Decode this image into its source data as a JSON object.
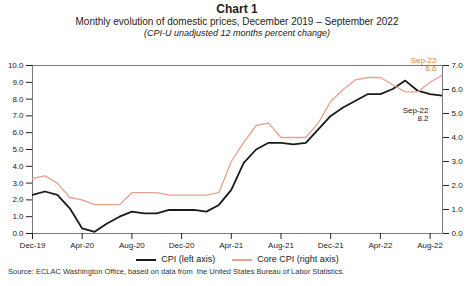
{
  "chart_data": {
    "type": "line",
    "title": "Chart 1",
    "subtitle": [
      "Monthly evolution of domestic prices, December 2019 – September 2022",
      "(CPI-U unadjusted 12 months percent change)"
    ],
    "source": "Source: ECLAC Washington Office, based on data from  the United States Bureau of Labor Statistics.",
    "x": [
      0,
      1,
      2,
      3,
      4,
      5,
      6,
      7,
      8,
      9,
      10,
      11,
      12,
      13,
      14,
      15,
      16,
      17,
      18,
      19,
      20,
      21,
      22,
      23,
      24,
      25,
      26,
      27,
      28,
      29,
      30,
      31,
      32,
      33
    ],
    "xlim": [
      0,
      33
    ],
    "xticks": [
      {
        "value": 0,
        "label": "Dec-19"
      },
      {
        "value": 4,
        "label": "Apr-20"
      },
      {
        "value": 8,
        "label": "Aug-20"
      },
      {
        "value": 12,
        "label": "Dec-20"
      },
      {
        "value": 16,
        "label": "Apr-21"
      },
      {
        "value": 20,
        "label": "Aug-21"
      },
      {
        "value": 24,
        "label": "Dec-21"
      },
      {
        "value": 28,
        "label": "Apr-22"
      },
      {
        "value": 32,
        "label": "Aug-22"
      }
    ],
    "ylim": [
      0.0,
      10.0
    ],
    "yticks": [
      {
        "value": 0,
        "label": "0.0"
      },
      {
        "value": 1,
        "label": "1.0"
      },
      {
        "value": 2,
        "label": "2.0"
      },
      {
        "value": 3,
        "label": "3.0"
      },
      {
        "value": 4,
        "label": "4.0"
      },
      {
        "value": 5,
        "label": "5.0"
      },
      {
        "value": 6,
        "label": "6.0"
      },
      {
        "value": 7,
        "label": "7.0"
      },
      {
        "value": 8,
        "label": "8.0"
      },
      {
        "value": 9,
        "label": "9.0"
      },
      {
        "value": 10,
        "label": "10.0"
      }
    ],
    "y2lim": [
      0.0,
      7.0
    ],
    "y2ticks": [
      {
        "value": 0,
        "label": "0.0"
      },
      {
        "value": 1,
        "label": "1.0"
      },
      {
        "value": 2,
        "label": "2.0"
      },
      {
        "value": 3,
        "label": "3.0"
      },
      {
        "value": 4,
        "label": "4.0"
      },
      {
        "value": 5,
        "label": "5.0"
      },
      {
        "value": 6,
        "label": "6.0"
      },
      {
        "value": 7,
        "label": "7.0"
      }
    ],
    "series": [
      {
        "name": "CPI (left axis)",
        "color": "#1a1a1a",
        "values": [
          2.3,
          2.5,
          2.3,
          1.5,
          0.3,
          0.1,
          0.6,
          1.0,
          1.3,
          1.2,
          1.2,
          1.4,
          1.4,
          1.4,
          1.3,
          1.7,
          2.6,
          4.2,
          5.0,
          5.4,
          5.4,
          5.3,
          5.4,
          6.2,
          7.0,
          7.5,
          7.9,
          8.3,
          8.3,
          8.6,
          9.1,
          8.5,
          8.3,
          8.2
        ]
      },
      {
        "name": "Core CPI (right axis)",
        "color": "#e8a090",
        "axis": "y2",
        "values": [
          2.3,
          2.4,
          2.1,
          1.5,
          1.4,
          1.2,
          1.2,
          1.2,
          1.7,
          1.7,
          1.7,
          1.6,
          1.6,
          1.6,
          1.6,
          1.7,
          3.0,
          3.8,
          4.5,
          4.6,
          4.0,
          4.0,
          4.0,
          4.6,
          5.5,
          6.0,
          6.4,
          6.5,
          6.5,
          6.2,
          5.9,
          5.9,
          6.3,
          6.6
        ]
      }
    ],
    "annotations": [
      {
        "text": "Sep-22\n8.2",
        "x": 33,
        "y": 8.2,
        "color": "#1a1a1a"
      },
      {
        "text": "Sep-22\n6.6",
        "x": 33,
        "y": 6.6,
        "axis": "y2",
        "color": "#d4824a"
      }
    ],
    "legend": "bottom",
    "grid": false
  }
}
